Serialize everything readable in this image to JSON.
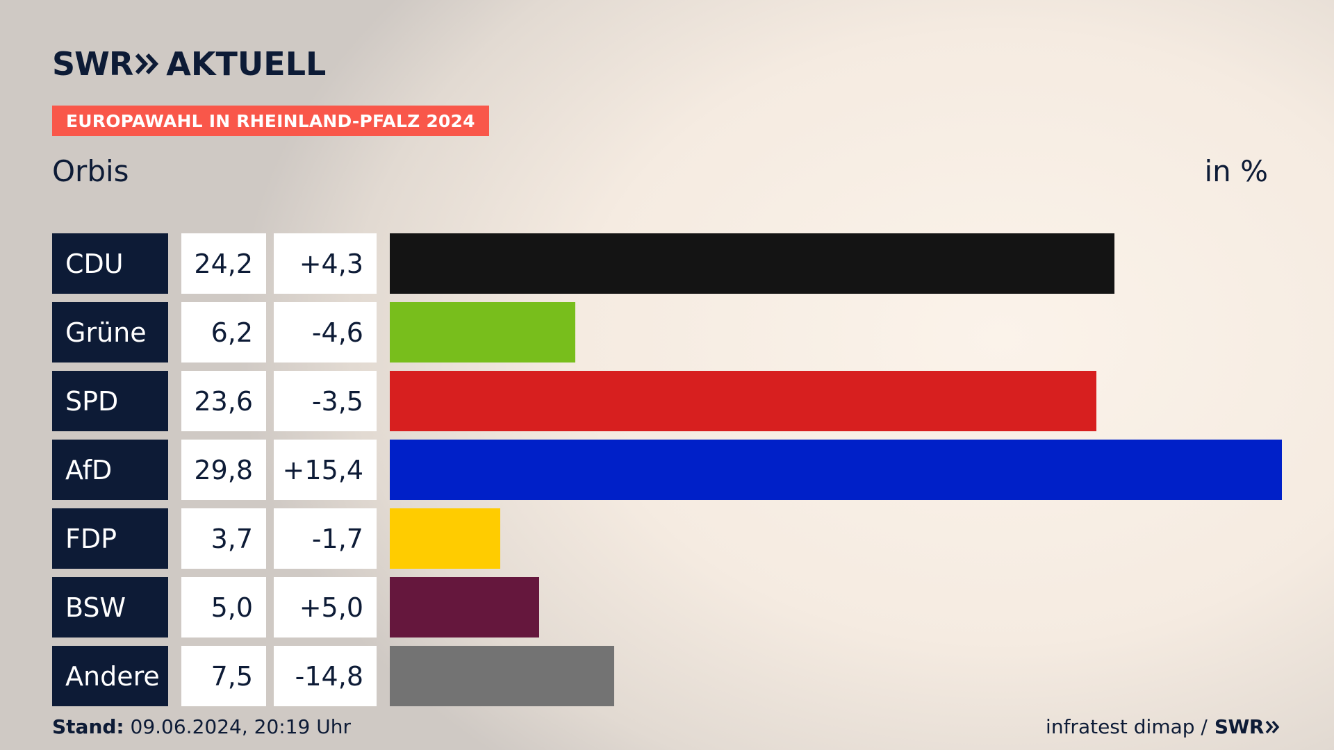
{
  "header": {
    "logo_swr": "SWR",
    "logo_aktuell": "AKTUELL",
    "tag": "EUROPAWAHL IN RHEINLAND-PFALZ 2024",
    "subtitle": "Orbis",
    "unit": "in %"
  },
  "colors": {
    "navy": "#0d1b36",
    "tag": "#f9574a"
  },
  "chart_data": {
    "type": "bar",
    "orientation": "horizontal",
    "categories": [
      "CDU",
      "Grüne",
      "SPD",
      "AfD",
      "FDP",
      "BSW",
      "Andere"
    ],
    "values": [
      24.2,
      6.2,
      23.6,
      29.8,
      3.7,
      5.0,
      7.5
    ],
    "value_labels": [
      "24,2",
      "6,2",
      "23,6",
      "29,8",
      "3,7",
      "5,0",
      "7,5"
    ],
    "change_labels": [
      "+4,3",
      "-4,6",
      "-3,5",
      "+15,4",
      "-1,7",
      "+5,0",
      "-14,8"
    ],
    "changes": [
      4.3,
      -4.6,
      -3.5,
      15.4,
      -1.7,
      5.0,
      -14.8
    ],
    "colors": [
      "#141414",
      "#78be1c",
      "#d71f1f",
      "#0020c8",
      "#ffcc00",
      "#65173d",
      "#737373"
    ],
    "xlim": [
      0,
      29.8
    ]
  },
  "footer": {
    "stand_label": "Stand:",
    "stand_value": " 09.06.2024, 20:19 Uhr",
    "source": "infratest dimap /",
    "source_logo": "SWR"
  }
}
